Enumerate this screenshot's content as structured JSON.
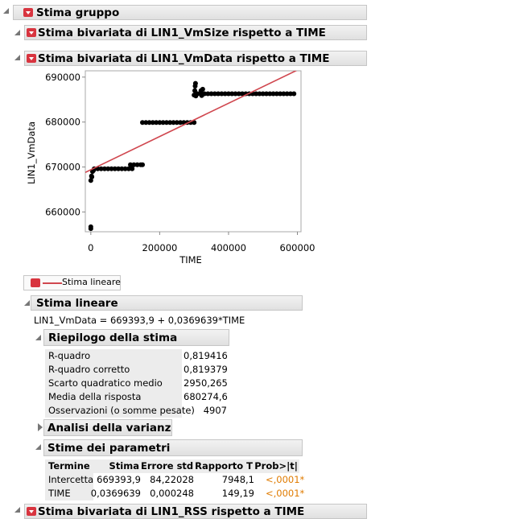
{
  "report": {
    "title": "Stima gruppo",
    "sections": [
      "Stima bivariata di LIN1_VmSize rispetto a TIME",
      "Stima bivariata di LIN1_VmData rispetto a TIME",
      "Stima bivariata di LIN1_RSS rispetto a TIME"
    ]
  },
  "chart_data": {
    "type": "scatter",
    "x_label": "TIME",
    "y_label": "LIN1_VmData",
    "color": "#000000",
    "x": [
      0,
      0,
      0,
      2000,
      3000,
      5000,
      8000,
      10000,
      20000,
      30000,
      40000,
      50000,
      60000,
      70000,
      80000,
      90000,
      100000,
      110000,
      120000,
      115000,
      125000,
      135000,
      145000,
      150000,
      150000,
      160000,
      170000,
      180000,
      190000,
      200000,
      210000,
      220000,
      230000,
      240000,
      250000,
      260000,
      270000,
      280000,
      290000,
      300000,
      300000,
      302000,
      303000,
      304000,
      305000,
      310000,
      320000,
      330000,
      340000,
      350000,
      360000,
      370000,
      380000,
      390000,
      400000,
      410000,
      420000,
      430000,
      440000,
      450000,
      460000,
      470000,
      480000,
      490000,
      500000,
      510000,
      520000,
      530000,
      540000,
      550000,
      560000,
      570000,
      580000,
      590000,
      320000,
      325000,
      322000
    ],
    "y": [
      656300,
      656700,
      667000,
      668000,
      667800,
      669000,
      669300,
      669600,
      669600,
      669600,
      669600,
      669600,
      669600,
      669600,
      669600,
      669600,
      669600,
      669600,
      669600,
      670500,
      670500,
      670500,
      670500,
      670500,
      679900,
      679900,
      679900,
      679900,
      679900,
      679900,
      679900,
      679900,
      679900,
      679900,
      679900,
      679900,
      679900,
      679900,
      679900,
      679900,
      686000,
      687000,
      688000,
      688600,
      685800,
      686300,
      686300,
      686300,
      686300,
      686300,
      686300,
      686300,
      686300,
      686300,
      686300,
      686300,
      686300,
      686300,
      686300,
      686300,
      686300,
      686300,
      686300,
      686300,
      686300,
      686300,
      686300,
      686300,
      686300,
      686300,
      686300,
      686300,
      686300,
      686300,
      687000,
      687300,
      685900
    ],
    "xlim": [
      -16000,
      610500
    ],
    "ylim": [
      655600,
      691400
    ],
    "xticks": [
      0,
      200000,
      400000,
      600000
    ],
    "yticks": [
      660000,
      670000,
      680000,
      690000
    ],
    "fit_line": {
      "name": "Stima lineare",
      "intercept": 669393.9,
      "slope": 0.0369639,
      "color": "#d0474f"
    }
  },
  "fit": {
    "title": "Stima lineare",
    "equation": "LIN1_VmData = 669393,9 + 0,0369639*TIME",
    "summary": {
      "title": "Riepilogo della stima",
      "rows": [
        [
          "R-quadro",
          "0,819416"
        ],
        [
          "R-quadro corretto",
          "0,819379"
        ],
        [
          "Scarto quadratico medio",
          "2950,265"
        ],
        [
          "Media della risposta",
          "680274,6"
        ],
        [
          "Osservazioni (o somme pesate)",
          "4907"
        ]
      ]
    },
    "anova": {
      "title": "Analisi della varianza"
    },
    "parameters": {
      "title": "Stime dei parametri",
      "columns": [
        "Termine",
        "Stima",
        "Errore std",
        "Rapporto T",
        "Prob>|t|"
      ],
      "rows": [
        [
          "Intercetta",
          "669393,9",
          "84,22028",
          "7948,1",
          "<,0001*"
        ],
        [
          "TIME",
          "0,0369639",
          "0,000248",
          "149,19",
          "<,0001*"
        ]
      ]
    }
  }
}
